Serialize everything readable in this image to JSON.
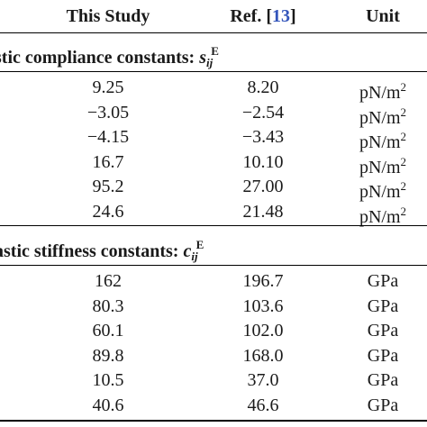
{
  "header": {
    "col1": "This Study",
    "col2_prefix": "Ref. [",
    "col2_ref": "13",
    "col2_suffix": "]",
    "col3": "Unit"
  },
  "sections": [
    {
      "title_text": "stic compliance constants: ",
      "symbol": "s",
      "subscript": "ij",
      "superscript": "E",
      "rows": [
        {
          "this_study": "9.25",
          "ref": "8.20",
          "unit_base": "pN/m",
          "unit_sup": "2"
        },
        {
          "this_study": "−3.05",
          "ref": "−2.54",
          "unit_base": "pN/m",
          "unit_sup": "2"
        },
        {
          "this_study": "−4.15",
          "ref": "−3.43",
          "unit_base": "pN/m",
          "unit_sup": "2"
        },
        {
          "this_study": "16.7",
          "ref": "10.10",
          "unit_base": "pN/m",
          "unit_sup": "2"
        },
        {
          "this_study": "95.2",
          "ref": "27.00",
          "unit_base": "pN/m",
          "unit_sup": "2"
        },
        {
          "this_study": "24.6",
          "ref": "21.48",
          "unit_base": "pN/m",
          "unit_sup": "2"
        }
      ]
    },
    {
      "title_text": "astic stiffness constants: ",
      "symbol": "c",
      "subscript": "ij",
      "superscript": "E",
      "rows": [
        {
          "this_study": "162",
          "ref": "196.7",
          "unit_base": "GPa",
          "unit_sup": ""
        },
        {
          "this_study": "80.3",
          "ref": "103.6",
          "unit_base": "GPa",
          "unit_sup": ""
        },
        {
          "this_study": "60.1",
          "ref": "102.0",
          "unit_base": "GPa",
          "unit_sup": ""
        },
        {
          "this_study": "89.8",
          "ref": "168.0",
          "unit_base": "GPa",
          "unit_sup": ""
        },
        {
          "this_study": "10.5",
          "ref": "37.0",
          "unit_base": "GPa",
          "unit_sup": ""
        },
        {
          "this_study": "40.6",
          "ref": "46.6",
          "unit_base": "GPa",
          "unit_sup": ""
        }
      ]
    }
  ]
}
